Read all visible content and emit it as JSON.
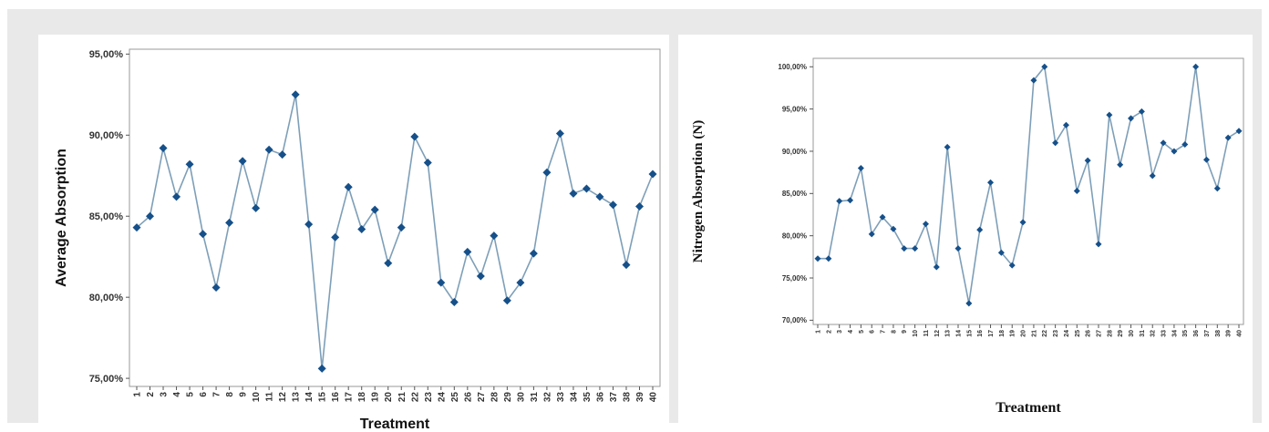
{
  "colors": {
    "line": "#7e9fb8",
    "marker": "#16508a",
    "background": "#e9e9e9",
    "plot_border": "#999999"
  },
  "chart_data": [
    {
      "type": "line",
      "xlabel": "Treatment",
      "ylabel": "Average Absorption",
      "ylim": [
        74.5,
        95.3
      ],
      "yticks": [
        75,
        80,
        85,
        90,
        95
      ],
      "ytick_labels": [
        "75,00%",
        "80,00%",
        "85,00%",
        "90,00%",
        "95,00%"
      ],
      "categories": [
        "1",
        "2",
        "3",
        "4",
        "5",
        "6",
        "7",
        "8",
        "9",
        "10",
        "11",
        "12",
        "13",
        "14",
        "15",
        "16",
        "17",
        "18",
        "19",
        "20",
        "21",
        "22",
        "23",
        "24",
        "25",
        "26",
        "27",
        "28",
        "29",
        "30",
        "31",
        "32",
        "33",
        "34",
        "35",
        "36",
        "37",
        "38",
        "39",
        "40"
      ],
      "values": [
        84.3,
        85.0,
        89.2,
        86.2,
        88.2,
        83.9,
        80.6,
        84.6,
        88.4,
        85.5,
        89.1,
        88.8,
        92.5,
        84.5,
        75.6,
        83.7,
        86.8,
        84.2,
        85.4,
        82.1,
        84.3,
        89.9,
        88.3,
        80.9,
        79.7,
        82.8,
        81.3,
        83.8,
        79.8,
        80.9,
        82.7,
        87.7,
        90.1,
        86.4,
        86.7,
        86.2,
        85.7,
        82.0,
        85.6,
        87.6
      ]
    },
    {
      "type": "line",
      "xlabel": "Treatment",
      "ylabel": "Nitrogen Absorption (N)",
      "ylim": [
        69.5,
        101.0
      ],
      "yticks": [
        70,
        75,
        80,
        85,
        90,
        95,
        100
      ],
      "ytick_labels": [
        "70,00%",
        "75,00%",
        "80,00%",
        "85,00%",
        "90,00%",
        "95,00%",
        "100,00%"
      ],
      "categories": [
        "1",
        "2",
        "3",
        "4",
        "5",
        "6",
        "7",
        "8",
        "9",
        "10",
        "11",
        "12",
        "13",
        "14",
        "15",
        "16",
        "17",
        "18",
        "19",
        "20",
        "21",
        "22",
        "23",
        "24",
        "25",
        "26",
        "27",
        "28",
        "29",
        "30",
        "31",
        "32",
        "33",
        "34",
        "35",
        "36",
        "37",
        "38",
        "39",
        "40"
      ],
      "values": [
        77.3,
        77.3,
        84.1,
        84.2,
        88.0,
        80.2,
        82.2,
        80.8,
        78.5,
        78.5,
        81.4,
        76.3,
        90.5,
        78.5,
        72.0,
        80.7,
        86.3,
        78.0,
        76.5,
        81.6,
        98.4,
        100.0,
        91.0,
        93.1,
        85.3,
        88.9,
        79.0,
        94.3,
        88.4,
        93.9,
        94.7,
        87.1,
        91.0,
        90.0,
        90.8,
        100.0,
        89.0,
        85.6,
        91.6,
        92.4
      ]
    }
  ]
}
